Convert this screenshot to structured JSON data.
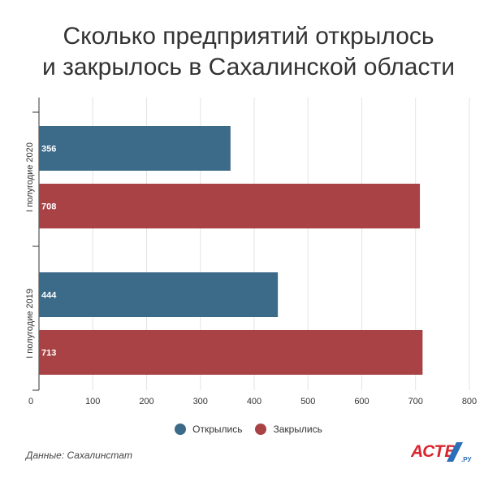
{
  "title_line1": "Сколько предприятий открылось",
  "title_line2": "и закрылось в Сахалинской области",
  "source": "Данные: Сахалинстат",
  "logo": {
    "main": "АСТВ",
    "suffix": ".РУ"
  },
  "colors": {
    "opened": "#3c6a89",
    "closed": "#a84245",
    "grid": "#e3e3e3",
    "axis": "#333333",
    "text": "#333333"
  },
  "chart_data": {
    "type": "bar",
    "orientation": "horizontal",
    "categories": [
      "I полугодие 2020",
      "I полугодие 2019"
    ],
    "series": [
      {
        "name": "Открылись",
        "values": [
          356,
          444
        ],
        "color": "#3c6a89"
      },
      {
        "name": "Закрылись",
        "values": [
          708,
          713
        ],
        "color": "#a84245"
      }
    ],
    "xlim": [
      0,
      800
    ],
    "xticks": [
      0,
      100,
      200,
      300,
      400,
      500,
      600,
      700,
      800
    ],
    "grid": true,
    "legend_position": "bottom"
  }
}
